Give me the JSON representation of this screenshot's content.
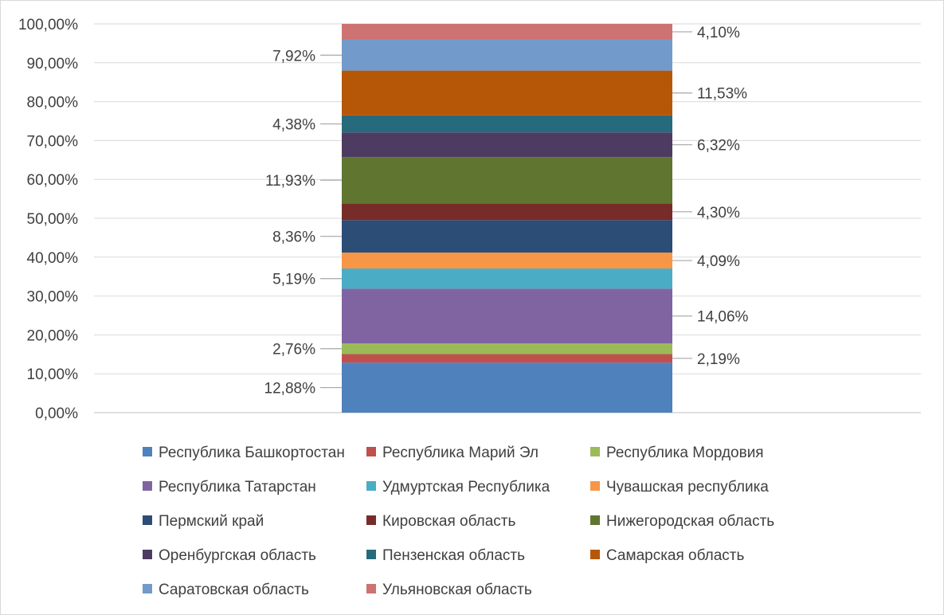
{
  "chart_data": {
    "type": "bar",
    "stacked": true,
    "categories": [
      ""
    ],
    "ylim": [
      0,
      100
    ],
    "y_ticks": [
      "0,00%",
      "10,00%",
      "20,00%",
      "30,00%",
      "40,00%",
      "50,00%",
      "60,00%",
      "70,00%",
      "80,00%",
      "90,00%",
      "100,00%"
    ],
    "grid": true,
    "legend_position": "bottom",
    "series": [
      {
        "name": "Республика Башкортостан",
        "values": [
          12.88
        ],
        "label": "12,88%",
        "color": "#4f81bd",
        "label_side": "left"
      },
      {
        "name": "Республика Марий Эл",
        "values": [
          2.19
        ],
        "label": "2,19%",
        "color": "#c0504d",
        "label_side": "right"
      },
      {
        "name": "Республика Мордовия",
        "values": [
          2.76
        ],
        "label": "2,76%",
        "color": "#9bbb59",
        "label_side": "left"
      },
      {
        "name": "Республика Татарстан",
        "values": [
          14.06
        ],
        "label": "14,06%",
        "color": "#8064a2",
        "label_side": "right"
      },
      {
        "name": "Удмуртская Республика",
        "values": [
          5.19
        ],
        "label": "5,19%",
        "color": "#4bacc6",
        "label_side": "left"
      },
      {
        "name": "Чувашская республика",
        "values": [
          4.09
        ],
        "label": "4,09%",
        "color": "#f79646",
        "label_side": "right"
      },
      {
        "name": "Пермский край",
        "values": [
          8.36
        ],
        "label": "8,36%",
        "color": "#2c4d75",
        "label_side": "left"
      },
      {
        "name": "Кировская область",
        "values": [
          4.3
        ],
        "label": "4,30%",
        "color": "#772c2a",
        "label_side": "right"
      },
      {
        "name": "Нижегородская область",
        "values": [
          11.93
        ],
        "label": "11,93%",
        "color": "#5f7530",
        "label_side": "left"
      },
      {
        "name": "Оренбургская область",
        "values": [
          6.32
        ],
        "label": "6,32%",
        "color": "#4d3b62",
        "label_side": "right"
      },
      {
        "name": "Пензенская область",
        "values": [
          4.38
        ],
        "label": "4,38%",
        "color": "#276a7c",
        "label_side": "left"
      },
      {
        "name": "Самарская область",
        "values": [
          11.53
        ],
        "label": "11,53%",
        "color": "#b65708",
        "label_side": "right"
      },
      {
        "name": "Саратовская область",
        "values": [
          7.92
        ],
        "label": "7,92%",
        "color": "#729aca",
        "label_side": "left"
      },
      {
        "name": "Ульяновская область",
        "values": [
          4.1
        ],
        "label": "4,10%",
        "color": "#cd7371",
        "label_side": "right"
      }
    ]
  }
}
